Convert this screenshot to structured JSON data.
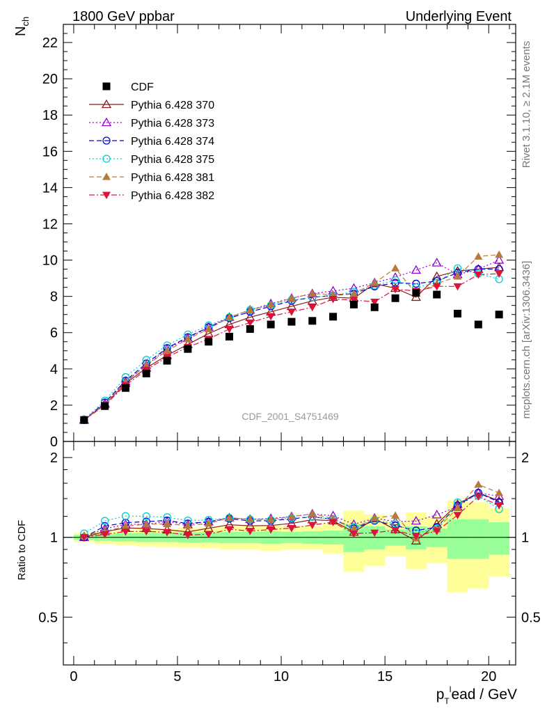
{
  "header": {
    "left": "1800 GeV ppbar",
    "right": "Underlying Event"
  },
  "side_labels": {
    "rivet": "Rivet 3.1.10, ≥ 2.1M events",
    "mcplots": "mcplots.cern.ch [arXiv:1306.3436]"
  },
  "chart_data": {
    "type": "scatter",
    "analysis_label": "CDF_2001_S4751469",
    "xlabel": "p_T^lead / GeV",
    "ylabel": "N_ch",
    "ratio_ylabel": "Ratio to CDF",
    "xlim": [
      -0.5,
      21.3
    ],
    "ylim": [
      0,
      23
    ],
    "ratio_ylim": [
      0.33,
      2.3
    ],
    "x_ticks": [
      0,
      5,
      10,
      15,
      20
    ],
    "y_ticks": [
      0,
      2,
      4,
      6,
      8,
      10,
      12,
      14,
      16,
      18,
      20,
      22
    ],
    "ratio_ticks": [
      0.5,
      1,
      2
    ],
    "grid": false,
    "legend_position": "top-left",
    "x": [
      0.5,
      1.5,
      2.5,
      3.5,
      4.5,
      5.5,
      6.5,
      7.5,
      8.5,
      9.5,
      10.5,
      11.5,
      12.5,
      13.5,
      14.5,
      15.5,
      16.5,
      17.5,
      18.5,
      19.5,
      20.5
    ],
    "data_series": {
      "name": "CDF",
      "color": "#000000",
      "marker": "filled-square",
      "values": [
        1.18,
        1.95,
        2.95,
        3.75,
        4.45,
        5.1,
        5.5,
        5.78,
        6.2,
        6.45,
        6.6,
        6.65,
        6.88,
        7.55,
        7.4,
        7.9,
        8.2,
        8.1,
        7.05,
        6.45,
        7.0
      ]
    },
    "series": [
      {
        "name": "Pythia 6.428 370",
        "color": "#8b1a1a",
        "marker": "open-triangle-up",
        "dash": "solid",
        "values": [
          1.18,
          2.05,
          3.2,
          4.05,
          4.75,
          5.35,
          5.95,
          6.45,
          6.85,
          7.15,
          7.45,
          7.75,
          7.95,
          7.9,
          8.7,
          8.45,
          7.95,
          9.1,
          9.4,
          9.5,
          9.6
        ]
      },
      {
        "name": "Pythia 6.428 373",
        "color": "#9400d3",
        "marker": "open-triangle-up",
        "dash": "dotted",
        "values": [
          1.18,
          2.1,
          3.3,
          4.2,
          5.1,
          5.7,
          6.3,
          6.85,
          7.25,
          7.6,
          7.9,
          8.15,
          8.3,
          8.45,
          8.75,
          9.05,
          9.45,
          9.85,
          9.2,
          9.5,
          10.0
        ]
      },
      {
        "name": "Pythia 6.428 374",
        "color": "#0000cd",
        "marker": "open-circle",
        "dash": "dashed",
        "values": [
          1.18,
          2.15,
          3.35,
          4.3,
          5.15,
          5.75,
          6.3,
          6.8,
          7.15,
          7.45,
          7.75,
          7.95,
          8.05,
          8.15,
          8.55,
          8.75,
          8.7,
          8.85,
          9.3,
          9.5,
          9.5
        ]
      },
      {
        "name": "Pythia 6.428 375",
        "color": "#00ced1",
        "marker": "open-circle",
        "dash": "dotted",
        "values": [
          1.22,
          2.25,
          3.55,
          4.5,
          5.3,
          5.9,
          6.4,
          6.85,
          7.25,
          7.5,
          7.8,
          7.95,
          8.05,
          8.25,
          8.6,
          8.9,
          8.5,
          8.75,
          9.55,
          9.25,
          8.95
        ]
      },
      {
        "name": "Pythia 6.428 381",
        "color": "#b87a3c",
        "marker": "filled-triangle-up",
        "dash": "dashed",
        "values": [
          1.2,
          2.05,
          3.25,
          4.2,
          5.0,
          5.65,
          6.2,
          6.85,
          7.25,
          7.55,
          7.9,
          8.15,
          8.1,
          8.15,
          8.75,
          9.55,
          8.15,
          8.7,
          9.1,
          10.2,
          10.3
        ]
      },
      {
        "name": "Pythia 6.428 382",
        "color": "#dc143c",
        "marker": "filled-triangle-down",
        "dash": "dashdot",
        "values": [
          1.18,
          2.0,
          3.1,
          3.95,
          4.65,
          5.2,
          5.65,
          6.2,
          6.55,
          6.9,
          7.15,
          7.4,
          7.85,
          7.8,
          7.7,
          8.4,
          8.3,
          8.55,
          8.55,
          9.2,
          9.25
        ]
      }
    ],
    "ratio_bands": {
      "green_half_width": [
        0.02,
        0.03,
        0.035,
        0.04,
        0.04,
        0.045,
        0.045,
        0.05,
        0.05,
        0.055,
        0.05,
        0.055,
        0.06,
        0.12,
        0.1,
        0.07,
        0.1,
        0.08,
        0.17,
        0.17,
        0.14
      ],
      "yellow_half_width": [
        0.04,
        0.055,
        0.065,
        0.075,
        0.08,
        0.085,
        0.09,
        0.1,
        0.1,
        0.11,
        0.1,
        0.1,
        0.13,
        0.26,
        0.22,
        0.15,
        0.24,
        0.2,
        0.38,
        0.36,
        0.29
      ]
    }
  }
}
